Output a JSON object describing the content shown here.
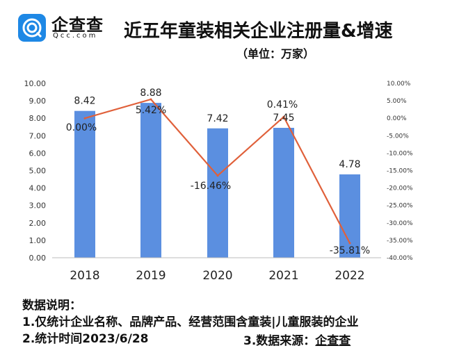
{
  "logo": {
    "name": "企查查",
    "sub": "Qcc.com"
  },
  "title": "近五年童装相关企业注册量&增速",
  "unit": "（单位：万家）",
  "chart_data": {
    "type": "bar+line",
    "categories": [
      "2018",
      "2019",
      "2020",
      "2021",
      "2022"
    ],
    "series": [
      {
        "kind": "bar",
        "axis": "left",
        "values": [
          8.42,
          8.88,
          7.42,
          7.45,
          4.78
        ],
        "labels": [
          "8.42",
          "8.88",
          "7.42",
          "7.45",
          "4.78"
        ],
        "color": "#5b8fe0"
      },
      {
        "kind": "line",
        "axis": "right",
        "values": [
          0.0,
          5.42,
          -16.46,
          0.41,
          -35.81
        ],
        "labels": [
          "0.00%",
          "5.42%",
          "-16.46%",
          "0.41%",
          "-35.81%"
        ],
        "color": "#e0603a"
      }
    ],
    "left_axis": {
      "ylim": [
        0,
        10
      ],
      "ticks": [
        "0.00",
        "1.00",
        "2.00",
        "3.00",
        "4.00",
        "5.00",
        "6.00",
        "7.00",
        "8.00",
        "9.00",
        "10.00"
      ]
    },
    "right_axis": {
      "ylim": [
        -40,
        10
      ],
      "ticks": [
        "-40.00%",
        "-35.00%",
        "-30.00%",
        "-25.00%",
        "-20.00%",
        "-15.00%",
        "-10.00%",
        "-5.00%",
        "0.00%",
        "5.00%",
        "10.00%"
      ]
    },
    "grid": false
  },
  "notes": {
    "heading": "数据说明：",
    "line1": "1.仅统计企业名称、品牌产品、经营范围含童装|儿童服装的企业",
    "line2": "2.统计时间2023/6/28",
    "line3_prefix": "3.数据来源：",
    "line3_source": "企查查"
  }
}
